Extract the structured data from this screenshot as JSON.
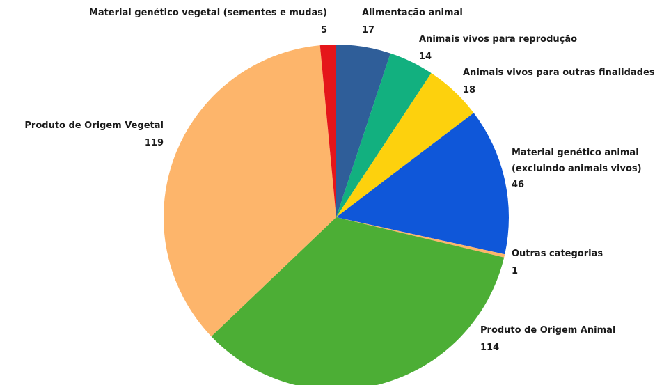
{
  "chart_data": {
    "type": "pie",
    "categories": [
      "Alimentação animal",
      "Animais vivos para reprodução",
      "Animais vivos para outras finalidades",
      "Material genético animal (excluindo animais vivos)",
      "Outras categorias",
      "Produto de Origem Animal",
      "Produto de Origem Vegetal",
      "Material genético vegetal (sementes e mudas)"
    ],
    "values": [
      17,
      14,
      18,
      46,
      1,
      114,
      119,
      5
    ],
    "colors": [
      "#2f5e99",
      "#12b07f",
      "#fdd10d",
      "#0f57d9",
      "#fdb56b",
      "#4cae35",
      "#fdb56b",
      "#e5161a"
    ]
  }
}
